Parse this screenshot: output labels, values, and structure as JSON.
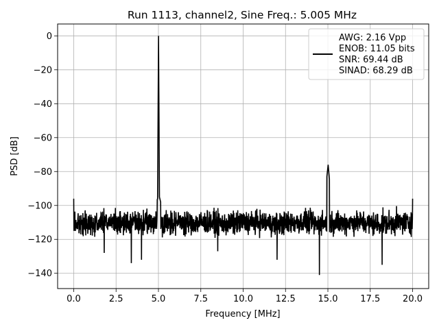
{
  "chart_data": {
    "type": "line",
    "title": "Run 1113, channel2, Sine Freq.: 5.005 MHz",
    "xlabel": "Frequency [MHz]",
    "ylabel": "PSD [dB]",
    "xlim": [
      -0.95,
      20.95
    ],
    "ylim": [
      -149,
      7
    ],
    "x_ticks": [
      0.0,
      2.5,
      5.0,
      7.5,
      10.0,
      12.5,
      15.0,
      17.5,
      20.0
    ],
    "x_tick_labels": [
      "0.0",
      "2.5",
      "5.0",
      "7.5",
      "10.0",
      "12.5",
      "15.0",
      "17.5",
      "20.0"
    ],
    "y_ticks": [
      0,
      -20,
      -40,
      -60,
      -80,
      -100,
      -120,
      -140
    ],
    "y_tick_labels": [
      "0",
      "−20",
      "−40",
      "−60",
      "−80",
      "−100",
      "−120",
      "−140"
    ],
    "grid": true,
    "legend_position": "top-right",
    "legend": {
      "lines": [
        "AWG: 2.16 Vpp",
        "ENOB: 11.05 bits",
        "SNR: 69.44 dB",
        "SINAD: 68.29 dB"
      ]
    },
    "series": [
      {
        "color": "#000000",
        "noise_floor_db": -110,
        "noise_band_db": [
          -121,
          -101
        ],
        "x": [
          0.0,
          0.5,
          1.0,
          1.5,
          2.0,
          2.5,
          3.0,
          3.5,
          4.0,
          4.5,
          4.8,
          4.95,
          5.005,
          5.06,
          5.2,
          5.5,
          6.0,
          7.0,
          8.0,
          9.0,
          10.0,
          11.0,
          12.0,
          13.0,
          14.0,
          14.5,
          14.8,
          15.015,
          15.2,
          15.5,
          16.0,
          17.0,
          18.0,
          19.0,
          20.0
        ],
        "y": [
          -106,
          -110,
          -111,
          -110,
          -109,
          -110,
          -111,
          -110,
          -110,
          -108,
          -100,
          -96,
          0,
          -95,
          -101,
          -107,
          -110,
          -110,
          -110,
          -111,
          -110,
          -110,
          -111,
          -110,
          -110,
          -112,
          -96,
          -76,
          -97,
          -105,
          -110,
          -110,
          -111,
          -110,
          -106
        ],
        "extremes": [
          {
            "x": 0.0,
            "y": -96
          },
          {
            "x": 1.8,
            "y": -128
          },
          {
            "x": 3.4,
            "y": -134
          },
          {
            "x": 4.0,
            "y": -132
          },
          {
            "x": 8.5,
            "y": -127
          },
          {
            "x": 12.0,
            "y": -132
          },
          {
            "x": 14.5,
            "y": -141
          },
          {
            "x": 18.2,
            "y": -135
          },
          {
            "x": 20.0,
            "y": -96
          }
        ]
      }
    ]
  }
}
